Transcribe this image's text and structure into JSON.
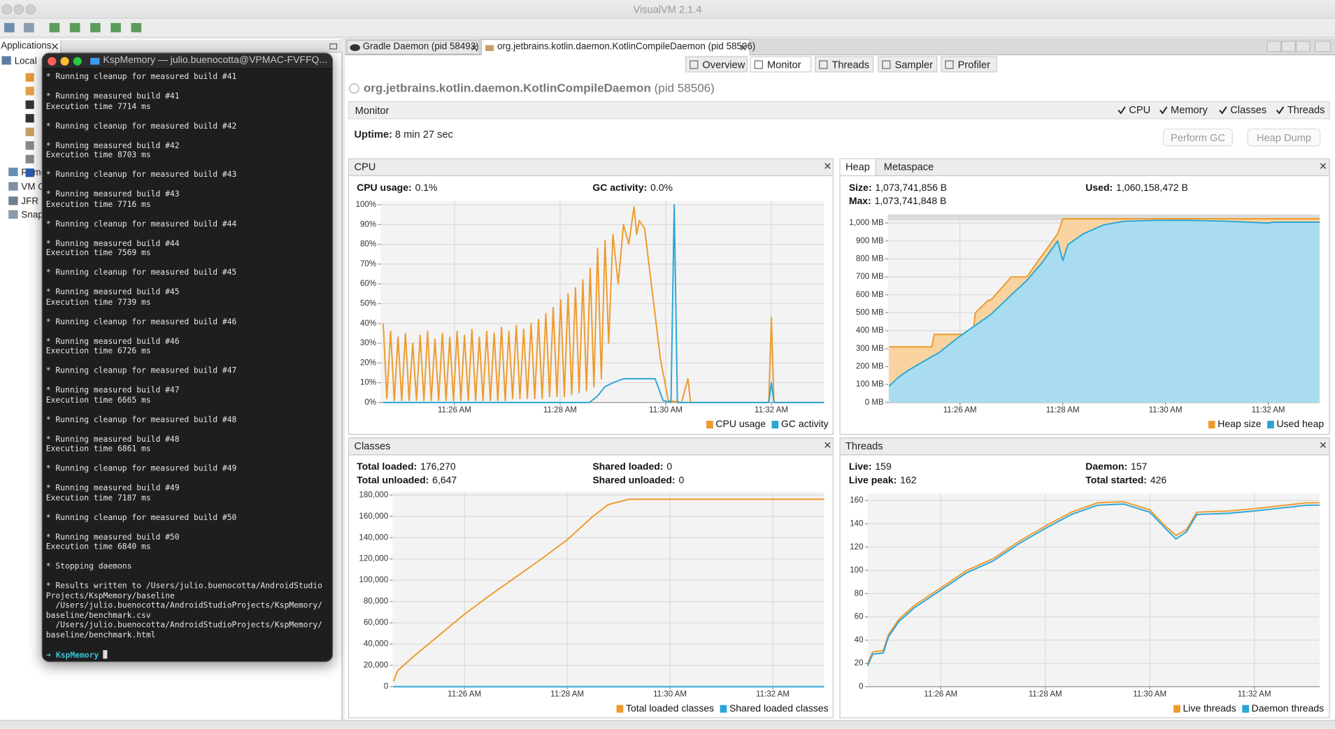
{
  "window": {
    "title": "VisualVM 2.1.4"
  },
  "left": {
    "tab": "Applications",
    "tree": [
      "Local",
      "Remote",
      "VM Coredumps",
      "JFR Snapshots",
      "Snapshots"
    ]
  },
  "tabs": [
    "Gradle Daemon (pid 58493)",
    "org.jetbrains.kotlin.daemon.KotlinCompileDaemon (pid 58506)"
  ],
  "subtabs": [
    "Overview",
    "Monitor",
    "Threads",
    "Sampler",
    "Profiler"
  ],
  "app": {
    "name": "org.jetbrains.kotlin.daemon.KotlinCompileDaemon",
    "pid": "(pid 58506)"
  },
  "monitor": {
    "title": "Monitor",
    "checks": [
      "CPU",
      "Memory",
      "Classes",
      "Threads"
    ],
    "uptime_label": "Uptime:",
    "uptime_value": "8 min 27 sec",
    "buttons": [
      "Perform GC",
      "Heap Dump"
    ]
  },
  "terminal": {
    "title": "KspMemory — julio.buenocotta@VPMAC-FVFFQ...",
    "blocks": [
      [
        "* Running cleanup for measured build #41"
      ],
      [
        "* Running measured build #41",
        "Execution time 7714 ms"
      ],
      [
        "* Running cleanup for measured build #42"
      ],
      [
        "* Running measured build #42",
        "Execution time 8703 ms"
      ],
      [
        "* Running cleanup for measured build #43"
      ],
      [
        "* Running measured build #43",
        "Execution time 7716 ms"
      ],
      [
        "* Running cleanup for measured build #44"
      ],
      [
        "* Running measured build #44",
        "Execution time 7569 ms"
      ],
      [
        "* Running cleanup for measured build #45"
      ],
      [
        "* Running measured build #45",
        "Execution time 7739 ms"
      ],
      [
        "* Running cleanup for measured build #46"
      ],
      [
        "* Running measured build #46",
        "Execution time 6726 ms"
      ],
      [
        "* Running cleanup for measured build #47"
      ],
      [
        "* Running measured build #47",
        "Execution time 6665 ms"
      ],
      [
        "* Running cleanup for measured build #48"
      ],
      [
        "* Running measured build #48",
        "Execution time 6861 ms"
      ],
      [
        "* Running cleanup for measured build #49"
      ],
      [
        "* Running measured build #49",
        "Execution time 7187 ms"
      ],
      [
        "* Running cleanup for measured build #50"
      ],
      [
        "* Running measured build #50",
        "Execution time 6840 ms"
      ],
      [
        "* Stopping daemons"
      ],
      [
        "* Results written to /Users/julio.buenocotta/AndroidStudio",
        "Projects/KspMemory/baseline",
        "  /Users/julio.buenocotta/AndroidStudioProjects/KspMemory/",
        "baseline/benchmark.csv",
        "  /Users/julio.buenocotta/AndroidStudioProjects/KspMemory/",
        "baseline/benchmark.html"
      ]
    ],
    "prompt_symbol": "➜",
    "prompt_dir": "KspMemory"
  },
  "chart_data": [
    {
      "type": "line",
      "title": "CPU",
      "stats": [
        {
          "label": "CPU usage:",
          "value": "0.1%"
        },
        {
          "label": "GC activity:",
          "value": "0.0%"
        }
      ],
      "xlim": [
        684.6,
        693.0
      ],
      "ylim": [
        0,
        102
      ],
      "xticks": [
        {
          "value": 686,
          "label": "11:26 AM"
        },
        {
          "value": 688,
          "label": "11:28 AM"
        },
        {
          "value": 690,
          "label": "11:30 AM"
        },
        {
          "value": 692,
          "label": "11:32 AM"
        }
      ],
      "yticks": [
        {
          "value": 0,
          "label": "0%"
        },
        {
          "value": 10,
          "label": "10%"
        },
        {
          "value": 20,
          "label": "20%"
        },
        {
          "value": 30,
          "label": "30%"
        },
        {
          "value": 40,
          "label": "40%"
        },
        {
          "value": 50,
          "label": "50%"
        },
        {
          "value": 60,
          "label": "60%"
        },
        {
          "value": 70,
          "label": "70%"
        },
        {
          "value": 80,
          "label": "80%"
        },
        {
          "value": 90,
          "label": "90%"
        },
        {
          "value": 100,
          "label": "100%"
        }
      ],
      "grid": true,
      "series": [
        {
          "name": "CPU usage",
          "color": "#ee9a2c",
          "x": [
            684.65,
            684.72,
            684.79,
            684.86,
            684.93,
            685.0,
            685.07,
            685.14,
            685.21,
            685.28,
            685.35,
            685.42,
            685.49,
            685.56,
            685.63,
            685.7,
            685.77,
            685.84,
            685.91,
            685.98,
            686.05,
            686.12,
            686.19,
            686.26,
            686.33,
            686.4,
            686.47,
            686.54,
            686.61,
            686.68,
            686.75,
            686.82,
            686.89,
            686.96,
            687.03,
            687.1,
            687.17,
            687.24,
            687.31,
            687.38,
            687.45,
            687.52,
            687.59,
            687.66,
            687.73,
            687.8,
            687.87,
            687.94,
            688.01,
            688.08,
            688.15,
            688.22,
            688.29,
            688.36,
            688.43,
            688.5,
            688.57,
            688.64,
            688.71,
            688.78,
            688.85,
            688.92,
            689.0,
            689.1,
            689.2,
            689.3,
            689.4,
            689.45,
            689.5,
            689.6,
            689.75,
            689.9,
            690.05,
            690.3,
            690.42,
            690.47,
            691.95,
            692.0,
            692.05,
            693.0
          ],
          "values": [
            40,
            2,
            36,
            1,
            33,
            1,
            35,
            1,
            30,
            1,
            34,
            1,
            36,
            1,
            32,
            1,
            35,
            1,
            33,
            1,
            36,
            1,
            34,
            1,
            37,
            1,
            33,
            1,
            36,
            1,
            35,
            1,
            38,
            1,
            36,
            2,
            39,
            2,
            37,
            2,
            40,
            2,
            42,
            2,
            45,
            3,
            48,
            3,
            52,
            3,
            55,
            4,
            58,
            5,
            62,
            6,
            68,
            8,
            78,
            12,
            82,
            30,
            85,
            60,
            90,
            80,
            99,
            85,
            92,
            88,
            55,
            22,
            1,
            0,
            12,
            0,
            0,
            43,
            0,
            0
          ]
        },
        {
          "name": "GC activity",
          "color": "#2aa6d6",
          "x": [
            684.65,
            688.55,
            688.7,
            688.85,
            689.0,
            689.2,
            689.5,
            689.8,
            689.95,
            690.1,
            690.16,
            690.22,
            691.95,
            692.0,
            692.05,
            693.0
          ],
          "values": [
            0,
            0,
            3,
            8,
            10,
            12,
            12,
            12,
            1,
            0,
            100,
            0,
            0,
            10,
            0,
            0
          ]
        }
      ]
    },
    {
      "type": "area",
      "tabs": [
        "Heap",
        "Metaspace"
      ],
      "stats": [
        {
          "label": "Size:",
          "value": "1,073,741,856 B"
        },
        {
          "label": "Used:",
          "value": "1,060,158,472 B"
        },
        {
          "label": "Max:",
          "value": "1,073,741,848 B"
        }
      ],
      "xlim": [
        684.6,
        693.0
      ],
      "ylim": [
        0,
        1048
      ],
      "xticks": [
        {
          "value": 686,
          "label": "11:26 AM"
        },
        {
          "value": 688,
          "label": "11:28 AM"
        },
        {
          "value": 690,
          "label": "11:30 AM"
        },
        {
          "value": 692,
          "label": "11:32 AM"
        }
      ],
      "yticks": [
        {
          "value": 0,
          "label": "0 MB"
        },
        {
          "value": 100,
          "label": "100 MB"
        },
        {
          "value": 200,
          "label": "200 MB"
        },
        {
          "value": 300,
          "label": "300 MB"
        },
        {
          "value": 400,
          "label": "400 MB"
        },
        {
          "value": 500,
          "label": "500 MB"
        },
        {
          "value": 600,
          "label": "600 MB"
        },
        {
          "value": 700,
          "label": "700 MB"
        },
        {
          "value": 800,
          "label": "800 MB"
        },
        {
          "value": 900,
          "label": "900 MB"
        },
        {
          "value": 1000,
          "label": "1,000 MB"
        }
      ],
      "grid": true,
      "series": [
        {
          "name": "Heap size",
          "color": "#ee9a2c",
          "fill": "#f8d3a0",
          "x": [
            684.62,
            685.45,
            685.5,
            686.25,
            686.3,
            686.55,
            686.6,
            687.0,
            687.3,
            687.5,
            687.7,
            687.9,
            688.0,
            693.0
          ],
          "values": [
            310,
            310,
            380,
            380,
            500,
            570,
            570,
            700,
            700,
            780,
            860,
            940,
            1024,
            1024
          ]
        },
        {
          "name": "Used heap",
          "color": "#2aa6d6",
          "fill": "#a9dcf1",
          "x": [
            684.62,
            684.8,
            685.0,
            685.3,
            685.6,
            686.0,
            686.3,
            686.6,
            687.0,
            687.3,
            687.6,
            687.9,
            688.0,
            688.1,
            688.4,
            688.8,
            689.2,
            689.8,
            690.5,
            691.2,
            692.0,
            692.1,
            693.0
          ],
          "values": [
            90,
            140,
            180,
            230,
            280,
            370,
            430,
            490,
            600,
            680,
            780,
            900,
            790,
            880,
            940,
            990,
            1010,
            1015,
            1015,
            1010,
            1000,
            1005,
            1005
          ]
        }
      ]
    },
    {
      "type": "line",
      "title": "Classes",
      "stats": [
        {
          "label": "Total loaded:",
          "value": "176,270"
        },
        {
          "label": "Shared loaded:",
          "value": "0"
        },
        {
          "label": "Total unloaded:",
          "value": "6,647"
        },
        {
          "label": "Shared unloaded:",
          "value": "0"
        }
      ],
      "xlim": [
        684.6,
        693.0
      ],
      "ylim": [
        0,
        183000
      ],
      "xticks": [
        {
          "value": 686,
          "label": "11:26 AM"
        },
        {
          "value": 688,
          "label": "11:28 AM"
        },
        {
          "value": 690,
          "label": "11:30 AM"
        },
        {
          "value": 692,
          "label": "11:32 AM"
        }
      ],
      "yticks": [
        0,
        {
          "value": 20000,
          "label": "20,000"
        },
        {
          "value": 40000,
          "label": "40,000"
        },
        {
          "value": 60000,
          "label": "60,000"
        },
        {
          "value": 80000,
          "label": "80,000"
        },
        {
          "value": 100000,
          "label": "100,000"
        },
        {
          "value": 120000,
          "label": "120,000"
        },
        {
          "value": 140000,
          "label": "140,000"
        },
        {
          "value": 160000,
          "label": "160,000"
        },
        {
          "value": 180000,
          "label": "180,000"
        }
      ],
      "grid": true,
      "series": [
        {
          "name": "Total loaded classes",
          "color": "#ee9a2c",
          "x": [
            684.62,
            684.7,
            685.0,
            685.5,
            686.0,
            686.5,
            687.0,
            687.5,
            688.0,
            688.5,
            688.8,
            689.2,
            693.0
          ],
          "values": [
            5000,
            15000,
            28000,
            48000,
            68000,
            86000,
            103000,
            120000,
            138000,
            160000,
            171000,
            176000,
            176000
          ]
        },
        {
          "name": "Shared loaded classes",
          "color": "#2aa6d6",
          "x": [
            684.62,
            693.0
          ],
          "values": [
            0,
            0
          ]
        }
      ]
    },
    {
      "type": "line",
      "title": "Threads",
      "stats": [
        {
          "label": "Live:",
          "value": "159"
        },
        {
          "label": "Daemon:",
          "value": "157"
        },
        {
          "label": "Live peak:",
          "value": "162"
        },
        {
          "label": "Total started:",
          "value": "426"
        }
      ],
      "xlim": [
        684.6,
        693.25
      ],
      "ylim": [
        0,
        166
      ],
      "xticks": [
        {
          "value": 686,
          "label": "11:26 AM"
        },
        {
          "value": 688,
          "label": "11:28 AM"
        },
        {
          "value": 690,
          "label": "11:30 AM"
        },
        {
          "value": 692,
          "label": "11:32 AM"
        }
      ],
      "yticks": [
        0,
        20,
        40,
        60,
        80,
        100,
        120,
        140,
        160
      ],
      "grid": true,
      "series": [
        {
          "name": "Live threads",
          "color": "#ee9a2c",
          "x": [
            684.6,
            684.7,
            684.9,
            685.0,
            685.2,
            685.5,
            686.0,
            686.5,
            687.0,
            687.5,
            688.0,
            688.5,
            689.0,
            689.5,
            690.0,
            690.3,
            690.5,
            690.7,
            690.9,
            691.5,
            692.0,
            693.0,
            693.25
          ],
          "values": [
            20,
            30,
            31,
            45,
            58,
            70,
            85,
            100,
            110,
            125,
            138,
            150,
            158,
            159,
            152,
            138,
            130,
            135,
            150,
            151,
            153,
            158,
            158
          ]
        },
        {
          "name": "Daemon threads",
          "color": "#2aa6d6",
          "x": [
            684.6,
            684.7,
            684.9,
            685.0,
            685.2,
            685.5,
            686.0,
            686.5,
            687.0,
            687.5,
            688.0,
            688.5,
            689.0,
            689.5,
            690.0,
            690.3,
            690.5,
            690.7,
            690.9,
            691.5,
            692.0,
            693.0,
            693.25
          ],
          "values": [
            18,
            28,
            29,
            43,
            56,
            68,
            83,
            98,
            108,
            123,
            136,
            148,
            156,
            157,
            150,
            136,
            127,
            133,
            148,
            149,
            151,
            156,
            156
          ]
        }
      ]
    }
  ]
}
